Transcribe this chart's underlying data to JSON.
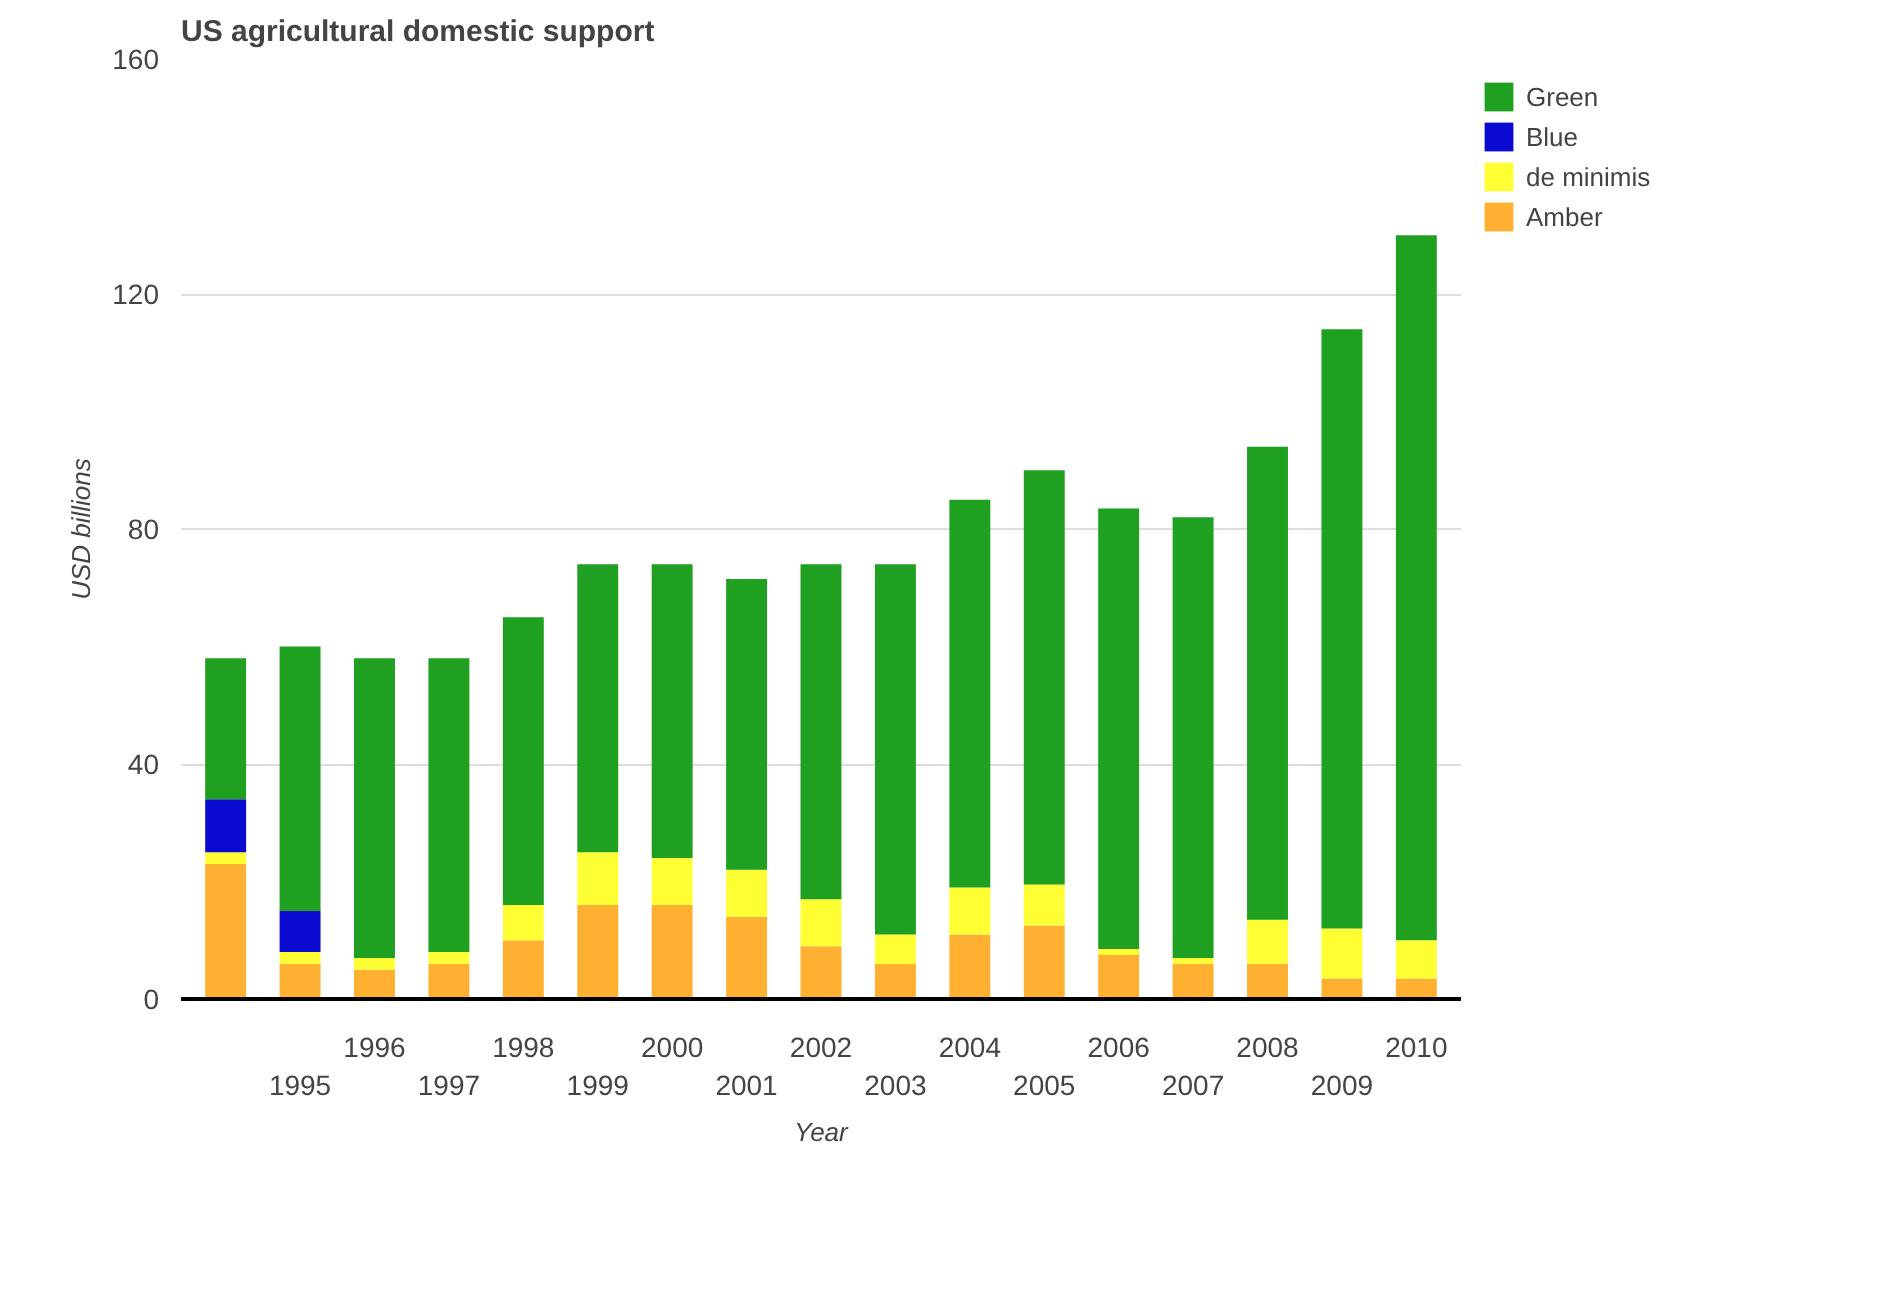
{
  "chart_data": {
    "type": "bar",
    "stacked": true,
    "title": "US agricultural domestic support",
    "xlabel": "Year",
    "ylabel": "USD billions",
    "categories": [
      null,
      "1995",
      "1996",
      "1997",
      "1998",
      "1999",
      "2000",
      "2001",
      "2002",
      "2003",
      "2004",
      "2005",
      "2006",
      "2007",
      "2008",
      "2009",
      "2010"
    ],
    "series": [
      {
        "name": "Amber",
        "color": "#ffb030",
        "values": [
          23,
          6,
          5,
          6,
          10,
          16,
          16,
          14,
          9,
          6,
          11,
          12.5,
          7.5,
          6,
          6,
          3.5,
          3.5
        ]
      },
      {
        "name": "de minimis",
        "color": "#ffff33",
        "values": [
          2,
          2,
          2,
          2,
          6,
          9,
          8,
          8,
          8,
          5,
          8,
          7,
          1,
          1,
          7.5,
          8.5,
          6.5
        ]
      },
      {
        "name": "Blue",
        "color": "#0a0ad0",
        "values": [
          9,
          7,
          0,
          0,
          0,
          0,
          0,
          0,
          0,
          0,
          0,
          0,
          0,
          0,
          0,
          0,
          0
        ]
      },
      {
        "name": "Green",
        "color": "#20a020",
        "values": [
          24,
          45,
          51,
          50,
          49,
          49,
          50,
          49.5,
          57,
          63,
          66,
          70.5,
          75,
          75,
          80.5,
          102,
          120
        ]
      }
    ],
    "ylim": [
      0,
      160
    ],
    "yticks": [
      0,
      40,
      80,
      120,
      160
    ],
    "grid": "y",
    "legend": "top right"
  }
}
